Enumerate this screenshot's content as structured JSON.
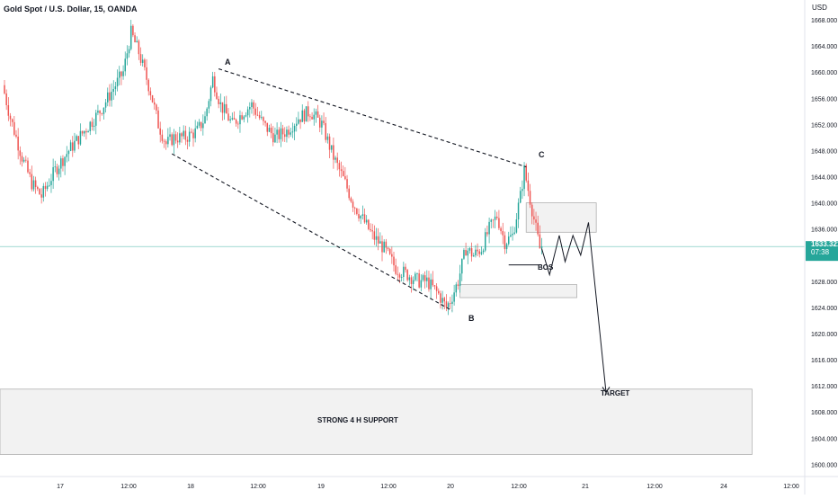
{
  "header": {
    "symbol_line": "Gold Spot / U.S. Dollar, 15, OANDA",
    "currency": "USD"
  },
  "price_badge": {
    "price": "1633.321",
    "countdown": "07:38",
    "color": "#26a69a"
  },
  "annotations": {
    "point_a": "A",
    "point_b": "B",
    "point_c": "C",
    "bos": "BOS",
    "target": "TARGET",
    "support": "STRONG 4 H SUPPORT"
  },
  "colors": {
    "up": "#26a69a",
    "down": "#ef5350",
    "axis_text": "#131722",
    "grid": "#f0f3fa",
    "zone_fill": "#f2f2f2",
    "zone_stroke": "#b0b0b0"
  },
  "chart_data": {
    "type": "candlestick",
    "y_axis": {
      "min": 1600,
      "max": 1670,
      "ticks": [
        "1600.000",
        "1604.000",
        "1608.000",
        "1612.000",
        "1616.000",
        "1620.000",
        "1624.000",
        "1628.000",
        "1632.000",
        "1636.000",
        "1640.000",
        "1644.000",
        "1648.000",
        "1652.000",
        "1656.000",
        "1660.000",
        "1664.000",
        "1668.000"
      ]
    },
    "x_axis": {
      "ticks": [
        "17",
        "12:00",
        "18",
        "12:00",
        "19",
        "12:00",
        "20",
        "12:00",
        "21",
        "12:00",
        "24",
        "12:00"
      ]
    },
    "current_price": 1633.321,
    "price_path_keypoints": [
      {
        "i": 0,
        "p": 1658
      },
      {
        "i": 4,
        "p": 1653
      },
      {
        "i": 10,
        "p": 1647
      },
      {
        "i": 15,
        "p": 1643
      },
      {
        "i": 20,
        "p": 1641
      },
      {
        "i": 27,
        "p": 1645
      },
      {
        "i": 34,
        "p": 1648
      },
      {
        "i": 42,
        "p": 1651
      },
      {
        "i": 50,
        "p": 1654
      },
      {
        "i": 56,
        "p": 1657
      },
      {
        "i": 62,
        "p": 1660
      },
      {
        "i": 66,
        "p": 1666
      },
      {
        "i": 70,
        "p": 1663
      },
      {
        "i": 76,
        "p": 1657
      },
      {
        "i": 80,
        "p": 1652
      },
      {
        "i": 84,
        "p": 1649
      },
      {
        "i": 88,
        "p": 1650
      },
      {
        "i": 94,
        "p": 1650
      },
      {
        "i": 100,
        "p": 1651
      },
      {
        "i": 104,
        "p": 1653
      },
      {
        "i": 108,
        "p": 1659
      },
      {
        "i": 112,
        "p": 1655
      },
      {
        "i": 118,
        "p": 1652
      },
      {
        "i": 124,
        "p": 1654
      },
      {
        "i": 128,
        "p": 1655
      },
      {
        "i": 134,
        "p": 1652
      },
      {
        "i": 140,
        "p": 1650
      },
      {
        "i": 146,
        "p": 1651
      },
      {
        "i": 152,
        "p": 1653
      },
      {
        "i": 158,
        "p": 1654
      },
      {
        "i": 164,
        "p": 1652
      },
      {
        "i": 170,
        "p": 1647
      },
      {
        "i": 176,
        "p": 1643
      },
      {
        "i": 180,
        "p": 1640
      },
      {
        "i": 186,
        "p": 1637
      },
      {
        "i": 190,
        "p": 1635
      },
      {
        "i": 196,
        "p": 1633
      },
      {
        "i": 202,
        "p": 1630
      },
      {
        "i": 208,
        "p": 1629
      },
      {
        "i": 214,
        "p": 1628
      },
      {
        "i": 218,
        "p": 1628
      },
      {
        "i": 224,
        "p": 1626
      },
      {
        "i": 228,
        "p": 1624
      },
      {
        "i": 230,
        "p": 1625
      },
      {
        "i": 234,
        "p": 1628
      },
      {
        "i": 238,
        "p": 1633
      },
      {
        "i": 242,
        "p": 1632
      },
      {
        "i": 246,
        "p": 1633
      },
      {
        "i": 250,
        "p": 1636
      },
      {
        "i": 254,
        "p": 1638
      },
      {
        "i": 258,
        "p": 1634
      },
      {
        "i": 262,
        "p": 1635
      },
      {
        "i": 266,
        "p": 1641
      },
      {
        "i": 268,
        "p": 1645
      },
      {
        "i": 272,
        "p": 1639
      },
      {
        "i": 276,
        "p": 1633
      }
    ],
    "zones": [
      {
        "name": "supply-zone",
        "x_from_index": 268,
        "x_to_index": 304,
        "price_low": 1635.5,
        "price_high": 1640
      },
      {
        "name": "demand-zone",
        "x_from_index": 234,
        "x_to_index": 294,
        "price_low": 1625.5,
        "price_high": 1627.5
      },
      {
        "name": "support-zone",
        "x_from_index": -12,
        "x_to_index": 384,
        "price_low": 1601.5,
        "price_high": 1611.5
      }
    ],
    "pattern_points": [
      {
        "label": "A",
        "index": 110,
        "price": 1660.5
      },
      {
        "label": "B",
        "index": 230,
        "price": 1623.5
      },
      {
        "label": "C",
        "index": 268,
        "price": 1645.5
      }
    ],
    "channel_lines": [
      {
        "from": {
          "index": 110,
          "price": 1660.5
        },
        "to": {
          "index": 268,
          "price": 1645.5
        }
      },
      {
        "from": {
          "index": 86,
          "price": 1647.5
        },
        "to": {
          "index": 230,
          "price": 1623.5
        }
      }
    ],
    "bos_line": {
      "from_index": 259,
      "to_index": 276,
      "price": 1630.5
    },
    "projection_path": [
      {
        "index": 276,
        "price": 1633
      },
      {
        "index": 280,
        "price": 1629
      },
      {
        "index": 285,
        "price": 1635
      },
      {
        "index": 288,
        "price": 1631
      },
      {
        "index": 292,
        "price": 1635
      },
      {
        "index": 296,
        "price": 1632
      },
      {
        "index": 300,
        "price": 1637
      },
      {
        "index": 309,
        "price": 1611
      }
    ]
  }
}
